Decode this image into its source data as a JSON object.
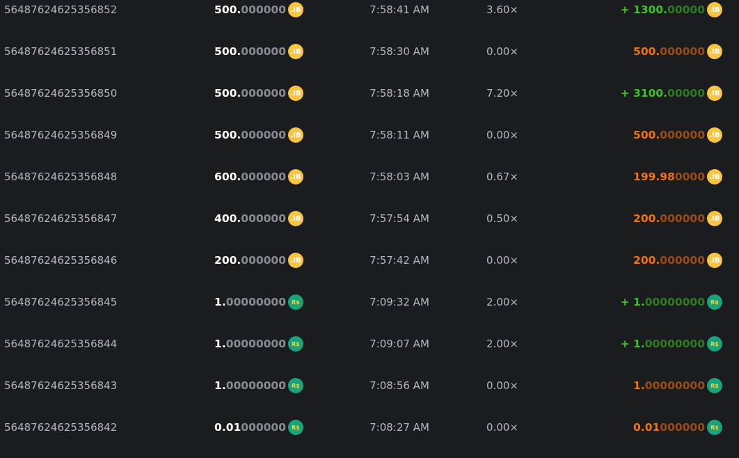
{
  "colors": {
    "background": "#1b1c20",
    "win": "#3fc225",
    "loss": "#f0730f",
    "ib_coin": "#f9c440",
    "rs_coin": "#1aa37a"
  },
  "rows": [
    {
      "id": "5648762462535685​2",
      "amount_main": "500.",
      "amount_dim": "000000",
      "coin": "IB",
      "time": "7:58:41 AM",
      "mult": "3.60×",
      "result": "win",
      "pay_prefix": "+ ",
      "pay_main": "1300.",
      "pay_dim": "00000"
    },
    {
      "id": "56487624625356851",
      "amount_main": "500.",
      "amount_dim": "000000",
      "coin": "IB",
      "time": "7:58:30 AM",
      "mult": "0.00×",
      "result": "loss",
      "pay_prefix": "",
      "pay_main": "500.",
      "pay_dim": "000000"
    },
    {
      "id": "56487624625356850",
      "amount_main": "500.",
      "amount_dim": "000000",
      "coin": "IB",
      "time": "7:58:18 AM",
      "mult": "7.20×",
      "result": "win",
      "pay_prefix": "+ ",
      "pay_main": "3100.",
      "pay_dim": "00000"
    },
    {
      "id": "56487624625356849",
      "amount_main": "500.",
      "amount_dim": "000000",
      "coin": "IB",
      "time": "7:58:11 AM",
      "mult": "0.00×",
      "result": "loss",
      "pay_prefix": "",
      "pay_main": "500.",
      "pay_dim": "000000"
    },
    {
      "id": "56487624625356848",
      "amount_main": "600.",
      "amount_dim": "000000",
      "coin": "IB",
      "time": "7:58:03 AM",
      "mult": "0.67×",
      "result": "loss",
      "pay_prefix": "",
      "pay_main": "199.98",
      "pay_dim": "0000"
    },
    {
      "id": "56487624625356847",
      "amount_main": "400.",
      "amount_dim": "000000",
      "coin": "IB",
      "time": "7:57:54 AM",
      "mult": "0.50×",
      "result": "loss",
      "pay_prefix": "",
      "pay_main": "200.",
      "pay_dim": "000000"
    },
    {
      "id": "56487624625356846",
      "amount_main": "200.",
      "amount_dim": "000000",
      "coin": "IB",
      "time": "7:57:42 AM",
      "mult": "0.00×",
      "result": "loss",
      "pay_prefix": "",
      "pay_main": "200.",
      "pay_dim": "000000"
    },
    {
      "id": "56487624625356845",
      "amount_main": "1.",
      "amount_dim": "00000000",
      "coin": "R$",
      "time": "7:09:32 AM",
      "mult": "2.00×",
      "result": "win",
      "pay_prefix": "+ ",
      "pay_main": "1.",
      "pay_dim": "00000000"
    },
    {
      "id": "56487624625356844",
      "amount_main": "1.",
      "amount_dim": "00000000",
      "coin": "R$",
      "time": "7:09:07 AM",
      "mult": "2.00×",
      "result": "win",
      "pay_prefix": "+ ",
      "pay_main": "1.",
      "pay_dim": "00000000"
    },
    {
      "id": "56487624625356843",
      "amount_main": "1.",
      "amount_dim": "00000000",
      "coin": "R$",
      "time": "7:08:56 AM",
      "mult": "0.00×",
      "result": "loss",
      "pay_prefix": "",
      "pay_main": "1.",
      "pay_dim": "00000000"
    },
    {
      "id": "56487624625356842",
      "amount_main": "0.01",
      "amount_dim": "000000",
      "coin": "R$",
      "time": "7:08:27 AM",
      "mult": "0.00×",
      "result": "loss",
      "pay_prefix": "",
      "pay_main": "0.01",
      "pay_dim": "000000"
    }
  ]
}
